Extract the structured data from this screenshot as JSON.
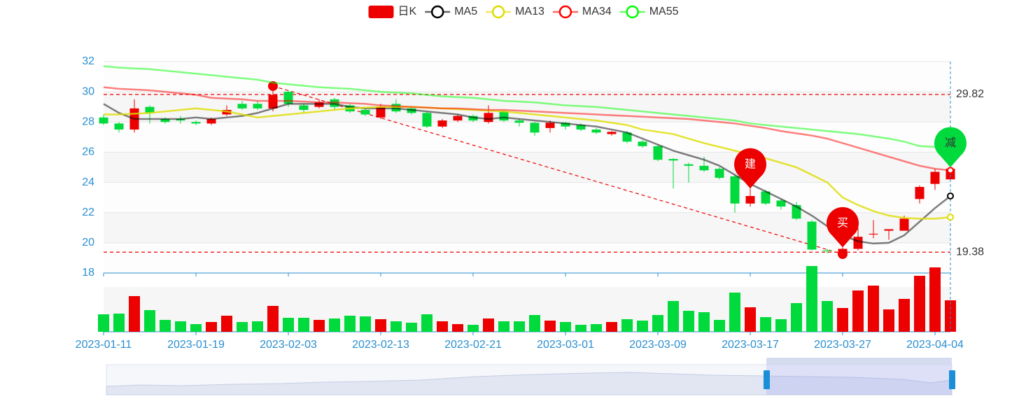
{
  "chart_data": {
    "type": "candlestick",
    "legend": "top",
    "grid": true,
    "categories": [
      "2023-01-11",
      null,
      null,
      null,
      null,
      null,
      "2023-01-19",
      null,
      null,
      null,
      null,
      null,
      "2023-02-03",
      null,
      null,
      null,
      null,
      null,
      "2023-02-13",
      null,
      null,
      null,
      null,
      null,
      "2023-02-21",
      null,
      null,
      null,
      null,
      null,
      "2023-03-01",
      null,
      null,
      null,
      null,
      null,
      "2023-03-09",
      null,
      null,
      null,
      null,
      null,
      "2023-03-17",
      null,
      null,
      null,
      null,
      null,
      "2023-03-27",
      null,
      null,
      null,
      null,
      null,
      "2023-04-04",
      null
    ],
    "ylim": [
      18,
      32
    ],
    "yticks": [
      18,
      20,
      22,
      24,
      26,
      28,
      30,
      32
    ],
    "candles": {
      "name": "日K",
      "up_color": "#ec0000",
      "down_color": "#00da3c",
      "open": [
        28.3,
        27.9,
        27.5,
        29.0,
        28.2,
        28.2,
        28.0,
        27.9,
        28.5,
        29.2,
        29.2,
        28.9,
        30.0,
        29.1,
        29.0,
        29.5,
        29.1,
        28.8,
        28.3,
        29.2,
        28.9,
        28.6,
        27.7,
        28.1,
        28.4,
        28.0,
        28.7,
        28.1,
        27.95,
        27.6,
        27.95,
        27.8,
        27.5,
        27.2,
        27.3,
        26.7,
        26.4,
        25.55,
        25.2,
        25.1,
        24.9,
        24.4,
        22.6,
        23.4,
        22.8,
        22.5,
        21.4,
        19.5,
        19.3,
        19.6,
        20.55,
        20.8,
        20.8,
        22.9,
        23.9,
        24.2
      ],
      "close": [
        27.9,
        27.5,
        28.9,
        28.6,
        28.0,
        28.1,
        27.9,
        28.2,
        28.8,
        28.9,
        28.9,
        29.8,
        29.2,
        28.8,
        29.3,
        29.0,
        28.7,
        28.5,
        29.0,
        28.7,
        28.6,
        27.7,
        28.1,
        28.4,
        28.1,
        28.6,
        28.1,
        27.95,
        27.3,
        27.95,
        27.7,
        27.5,
        27.3,
        27.35,
        26.7,
        26.4,
        25.5,
        25.45,
        25.1,
        24.8,
        24.3,
        22.6,
        23.1,
        22.6,
        22.4,
        21.6,
        19.55,
        19.45,
        19.6,
        20.4,
        20.6,
        20.9,
        21.6,
        23.7,
        24.7,
        24.9
      ],
      "high": [
        28.5,
        28.0,
        29.5,
        29.1,
        28.3,
        28.4,
        28.1,
        28.3,
        29.1,
        29.4,
        29.4,
        30.38,
        30.1,
        29.2,
        29.5,
        29.6,
        29.2,
        28.9,
        29.2,
        29.5,
        29.0,
        28.7,
        28.2,
        28.5,
        28.5,
        29.1,
        28.8,
        28.2,
        28.0,
        28.1,
        28.0,
        27.9,
        27.6,
        27.4,
        27.4,
        26.8,
        26.5,
        25.6,
        25.3,
        25.7,
        25.0,
        24.5,
        23.6,
        23.5,
        22.9,
        22.7,
        21.5,
        19.6,
        19.7,
        21.0,
        21.5,
        20.9,
        21.8,
        23.8,
        24.9,
        25.0
      ],
      "low": [
        27.8,
        27.3,
        27.3,
        27.9,
        27.9,
        27.9,
        27.8,
        27.8,
        28.4,
        28.8,
        28.8,
        28.7,
        29.0,
        28.6,
        28.9,
        28.8,
        28.6,
        28.4,
        28.2,
        28.6,
        28.5,
        27.6,
        27.6,
        28.0,
        28.0,
        27.9,
        28.0,
        27.7,
        27.1,
        27.3,
        27.5,
        27.4,
        27.2,
        27.1,
        26.6,
        26.3,
        25.4,
        23.6,
        24.0,
        24.7,
        24.2,
        22.0,
        22.4,
        22.5,
        22.2,
        21.5,
        19.5,
        19.3,
        19.25,
        19.5,
        20.3,
        20.2,
        20.8,
        22.6,
        23.5,
        24.1
      ]
    },
    "volume": {
      "vlim": [
        0,
        100
      ],
      "values": [
        25,
        26,
        51,
        31,
        17,
        15,
        11,
        14,
        23,
        14,
        15,
        37,
        20,
        20,
        17,
        19,
        23,
        22,
        18,
        15,
        13,
        25,
        15,
        11,
        10,
        19,
        15,
        15,
        24,
        16,
        14,
        10,
        11,
        14,
        18,
        16,
        24,
        44,
        30,
        28,
        17,
        56,
        35,
        21,
        18,
        41,
        94,
        44,
        34,
        59,
        66,
        32,
        47,
        80,
        92,
        45
      ]
    },
    "series": [
      {
        "name": "MA5",
        "color": "#000000",
        "values": [
          29.2,
          28.6,
          28.2,
          28.2,
          28.2,
          28.2,
          28.3,
          28.2,
          28.3,
          28.4,
          28.6,
          28.9,
          29.2,
          29.2,
          29.2,
          29.2,
          29.0,
          28.9,
          28.9,
          28.9,
          28.8,
          28.7,
          28.6,
          28.5,
          28.3,
          28.2,
          28.3,
          28.2,
          28.1,
          28.0,
          27.9,
          27.8,
          27.7,
          27.5,
          27.3,
          26.9,
          26.5,
          26.1,
          25.8,
          25.5,
          25.1,
          24.5,
          23.9,
          23.4,
          22.9,
          22.4,
          21.8,
          21.1,
          20.5,
          20.1,
          19.95,
          20.0,
          20.5,
          21.4,
          22.3,
          23.1
        ]
      },
      {
        "name": "MA13",
        "color": "#dddd00",
        "values": [
          28.5,
          28.5,
          28.55,
          28.6,
          28.7,
          28.8,
          28.9,
          28.8,
          28.7,
          28.5,
          28.3,
          28.4,
          28.5,
          28.6,
          28.7,
          28.8,
          28.9,
          28.95,
          29.0,
          29.0,
          29.0,
          28.95,
          28.9,
          28.85,
          28.8,
          28.75,
          28.7,
          28.6,
          28.5,
          28.4,
          28.3,
          28.2,
          28.1,
          27.95,
          27.8,
          27.5,
          27.35,
          27.2,
          26.9,
          26.6,
          26.35,
          26.1,
          25.85,
          25.6,
          25.3,
          25.0,
          24.5,
          24.0,
          23.0,
          22.5,
          22.1,
          21.8,
          21.65,
          21.6,
          21.6,
          21.7
        ]
      },
      {
        "name": "MA34",
        "color": "#ff0000",
        "values": [
          30.3,
          30.2,
          30.15,
          30.1,
          30.0,
          29.9,
          29.8,
          29.6,
          29.55,
          29.5,
          29.4,
          29.4,
          29.4,
          29.35,
          29.3,
          29.3,
          29.25,
          29.2,
          29.1,
          29.05,
          29.0,
          28.95,
          28.9,
          28.9,
          28.85,
          28.8,
          28.8,
          28.75,
          28.7,
          28.65,
          28.6,
          28.55,
          28.5,
          28.45,
          28.4,
          28.35,
          28.3,
          28.25,
          28.2,
          28.1,
          28.0,
          27.9,
          27.75,
          27.6,
          27.4,
          27.25,
          27.1,
          26.9,
          26.6,
          26.3,
          26.0,
          25.7,
          25.4,
          25.1,
          24.9,
          24.8
        ]
      },
      {
        "name": "MA55",
        "color": "#00ff00",
        "values": [
          31.7,
          31.6,
          31.55,
          31.5,
          31.4,
          31.3,
          31.2,
          31.1,
          31.0,
          30.9,
          30.8,
          30.6,
          30.5,
          30.4,
          30.3,
          30.25,
          30.2,
          30.1,
          30.0,
          29.95,
          29.9,
          29.8,
          29.7,
          29.65,
          29.6,
          29.5,
          29.4,
          29.35,
          29.3,
          29.2,
          29.1,
          29.05,
          29.0,
          28.9,
          28.8,
          28.7,
          28.6,
          28.5,
          28.4,
          28.3,
          28.2,
          28.1,
          27.9,
          27.8,
          27.7,
          27.6,
          27.5,
          27.4,
          27.3,
          27.2,
          27.05,
          26.9,
          26.7,
          26.4,
          26.35,
          26.3
        ]
      }
    ],
    "mark_lines": [
      {
        "value": 29.82
      },
      {
        "value": 19.38
      }
    ],
    "trend_line": {
      "from": {
        "index": 11,
        "value": 30.38
      },
      "to": {
        "index": 48,
        "value": 19.25
      }
    },
    "annotations": [
      {
        "label": "建",
        "index": 42,
        "value": 23.6,
        "color": "#ec0000"
      },
      {
        "label": "买",
        "index": 48,
        "value": 19.7,
        "color": "#ec0000"
      },
      {
        "label": "减",
        "index": 55,
        "value": 25.0,
        "color": "#00da3c"
      }
    ]
  }
}
